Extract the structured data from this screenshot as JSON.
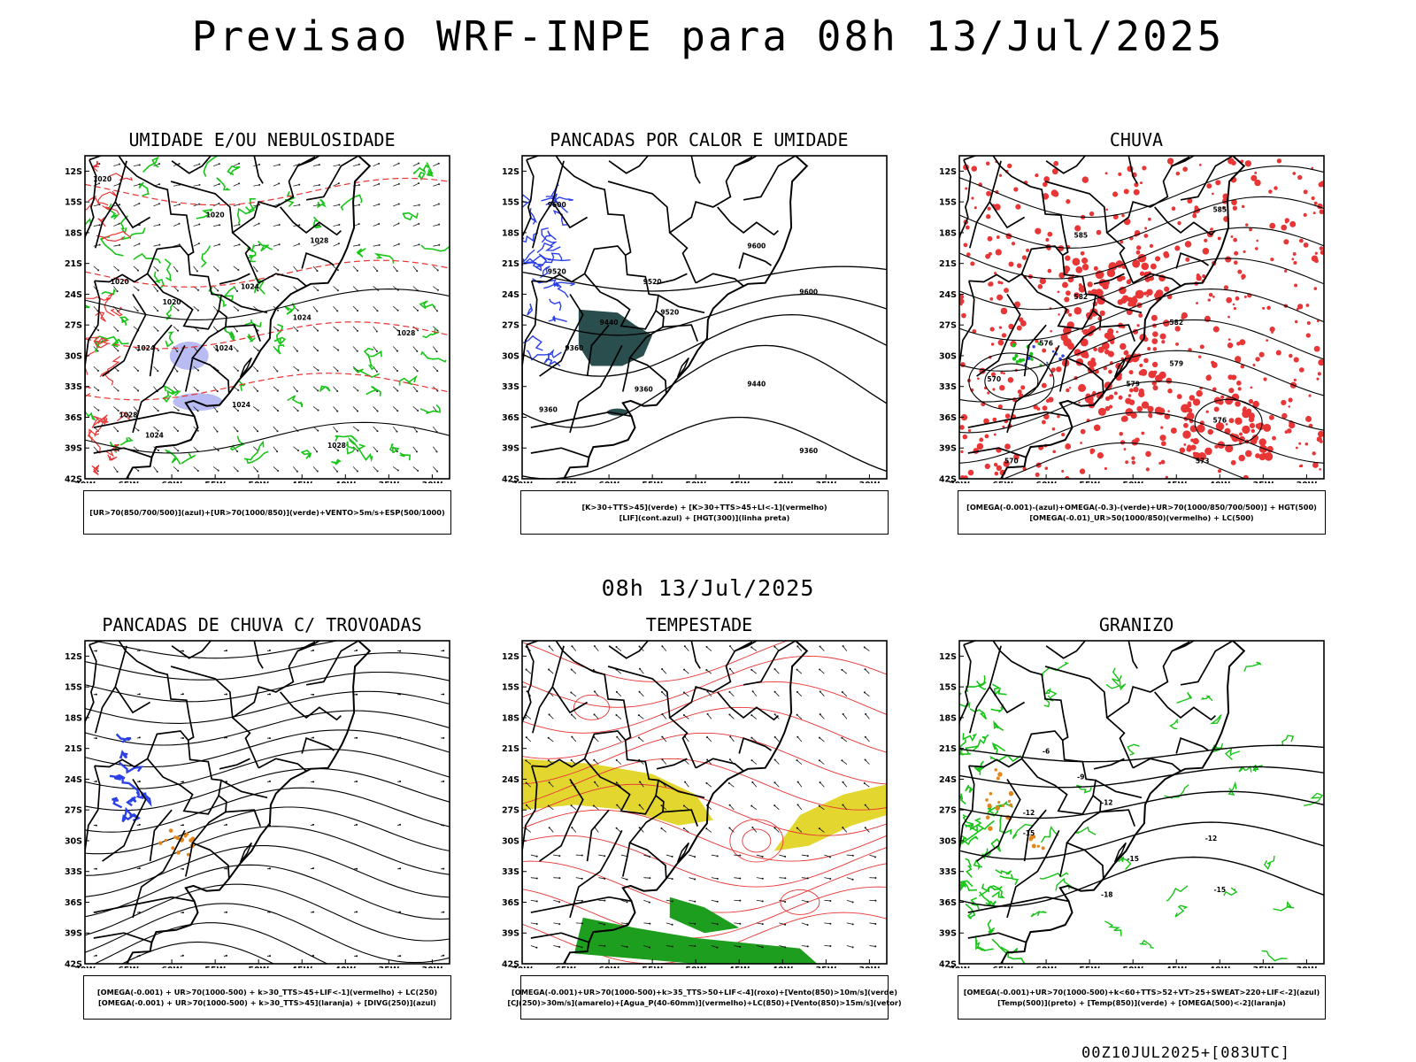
{
  "page": {
    "title": "Previsao WRF-INPE  para 08h 13/Jul/2025",
    "mid_label": "08h 13/Jul/2025",
    "footer": "00Z10JUL2025+[083UTC]"
  },
  "colors": {
    "coast": "#000000",
    "green": "#19c419",
    "red": "#e83535",
    "blue": "#2b40e6",
    "lavender": "#b9bcf2",
    "teal": "#2a4d4d",
    "yellow": "#e3d72f",
    "orange": "#e0861c",
    "darkgreen": "#1e9e1e"
  },
  "panels": [
    {
      "title": "UMIDADE E/OU NEBULOSIDADE",
      "legend": [
        "[UR>70(850/700/500)](azul)+[UR>70(1000/850)](verde)+VENTO>5m/s+ESP(500/1000)"
      ],
      "contour_labels": [
        "1020",
        "1020",
        "1024",
        "1020",
        "1020",
        "1024",
        "1024",
        "1028",
        "1024",
        "1028",
        "1024",
        "1028",
        "1028",
        "1024"
      ]
    },
    {
      "title": "PANCADAS POR CALOR E UMIDADE",
      "legend": [
        "[K>30+TTS>45](verde) + [K>30+TTS>45+LI<-1](vermelho)",
        "[LIF](cont.azul) + [HGT(300)](linha preta)"
      ],
      "contour_labels": [
        "9600",
        "9520",
        "9600",
        "9600",
        "9520",
        "9440",
        "9520",
        "9360",
        "9440",
        "9360",
        "9360",
        "9360"
      ]
    },
    {
      "title": "CHUVA",
      "legend": [
        "[OMEGA(-0.001)-(azul)+OMEGA(-0.3)-(verde)+UR>70(1000/850/700/500)] + HGT(500)",
        "[OMEGA(-0.01)_UR>50(1000/850)(vermelho) + LC(500)"
      ],
      "contour_labels": [
        "585",
        "582",
        "579",
        "576",
        "573",
        "570",
        "570",
        "576",
        "579",
        "582",
        "585"
      ]
    },
    {
      "title": "PANCADAS DE CHUVA C/ TROVOADAS",
      "legend": [
        "[OMEGA(-0.001) + UR>70(1000-500) + k>30_TTS>45+LIF<-1](vermelho) + LC(250)",
        "[OMEGA(-0.001) + UR>70(1000-500) + k>30_TTS>45](laranja) + [DIVG(250)](azul)"
      ],
      "contour_labels": []
    },
    {
      "title": "TEMPESTADE",
      "legend": [
        "[OMEGA(-0.001)+UR>70(1000-500)+k>35_TTS>50+LIF<-4](roxo)+[Vento(850)>10m/s](verde)",
        "[CJ(250)>30m/s](amarelo)+[Agua_P(40-60mm)](vermelho)+LC(850)+[Vento(850)>15m/s](vetor)"
      ],
      "contour_labels": []
    },
    {
      "title": "GRANIZO",
      "legend": [
        "[OMEGA(-0.001)+UR>70(1000-500)+k<60+TTS>52+VT>25+SWEAT>220+LIF<-2](azul)",
        "[Temp(500)](preto) + [Temp(850)](verde) + [OMEGA(500)<-2](laranja)"
      ],
      "contour_labels": [
        "-6",
        "-9",
        "-12",
        "-12",
        "-15",
        "-15",
        "-18",
        "-15",
        "-12"
      ]
    }
  ],
  "chart_data": {
    "type": "map",
    "lat_ticks": [
      "12S",
      "15S",
      "18S",
      "21S",
      "24S",
      "27S",
      "30S",
      "33S",
      "36S",
      "39S",
      "42S"
    ],
    "lon_ticks": [
      "70W",
      "65W",
      "60W",
      "55W",
      "50W",
      "45W",
      "40W",
      "35W",
      "30W"
    ],
    "lat_range": [
      -42,
      -10
    ],
    "lon_range": [
      -70,
      -28
    ]
  }
}
